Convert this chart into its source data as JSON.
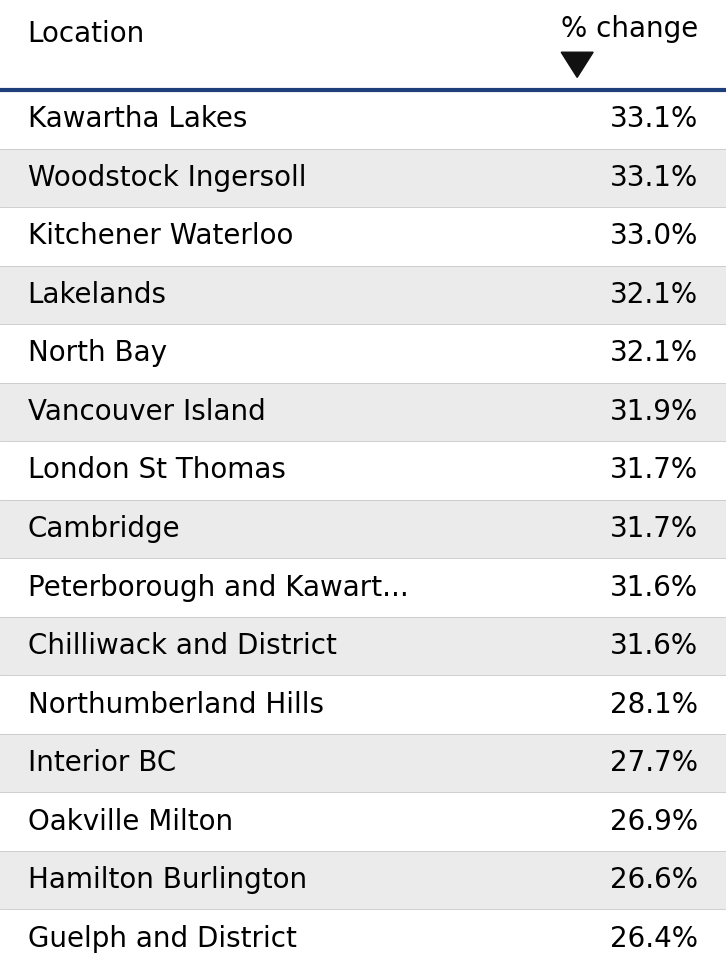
{
  "header_location": "Location",
  "header_change": "% change",
  "rows": [
    {
      "location": "Kawartha Lakes",
      "change": "33.1%"
    },
    {
      "location": "Woodstock Ingersoll",
      "change": "33.1%"
    },
    {
      "location": "Kitchener Waterloo",
      "change": "33.0%"
    },
    {
      "location": "Lakelands",
      "change": "32.1%"
    },
    {
      "location": "North Bay",
      "change": "32.1%"
    },
    {
      "location": "Vancouver Island",
      "change": "31.9%"
    },
    {
      "location": "London St Thomas",
      "change": "31.7%"
    },
    {
      "location": "Cambridge",
      "change": "31.7%"
    },
    {
      "location": "Peterborough and Kawart...",
      "change": "31.6%"
    },
    {
      "location": "Chilliwack and District",
      "change": "31.6%"
    },
    {
      "location": "Northumberland Hills",
      "change": "28.1%"
    },
    {
      "location": "Interior BC",
      "change": "27.7%"
    },
    {
      "location": "Oakville Milton",
      "change": "26.9%"
    },
    {
      "location": "Hamilton Burlington",
      "change": "26.6%"
    },
    {
      "location": "Guelph and District",
      "change": "26.4%"
    }
  ],
  "bg_white": "#ffffff",
  "bg_gray": "#ebebeb",
  "header_text_color": "#000000",
  "row_text_color": "#000000",
  "header_line_color": "#1f3f7a",
  "divider_color": "#c8c8c8",
  "font_size": 20,
  "header_font_size": 20,
  "arrow_color": "#111111",
  "fig_width": 7.26,
  "fig_height": 9.68,
  "dpi": 100
}
